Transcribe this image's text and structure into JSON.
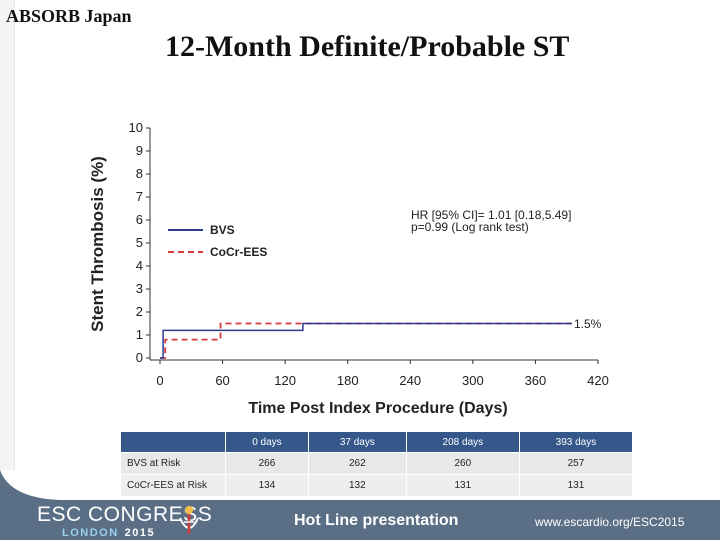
{
  "header": {
    "brand": "ABSORB Japan",
    "title": "12-Month Definite/Probable ST"
  },
  "chart_data": {
    "type": "line",
    "title": "12-Month Definite/Probable ST",
    "xlabel": "Time Post Index Procedure (Days)",
    "ylabel": "Stent Thrombosis (%)",
    "xlim": [
      0,
      420
    ],
    "ylim": [
      0,
      10
    ],
    "x_ticks": [
      "0",
      "60",
      "120",
      "180",
      "240",
      "300",
      "360",
      "420"
    ],
    "y_ticks": [
      "0",
      "1",
      "2",
      "3",
      "4",
      "5",
      "6",
      "7",
      "8",
      "9",
      "10"
    ],
    "series": [
      {
        "name": "BVS",
        "color": "#2b3b8f",
        "style": "solid",
        "x": [
          0,
          3,
          3,
          137,
          137,
          395
        ],
        "y": [
          0,
          0,
          1.2,
          1.2,
          1.5,
          1.5
        ]
      },
      {
        "name": "CoCr-EES",
        "color": "#d43a3a",
        "style": "dashed",
        "x": [
          0,
          5,
          5,
          58,
          58,
          395
        ],
        "y": [
          0,
          0,
          0.8,
          0.8,
          1.5,
          1.5
        ]
      }
    ],
    "end_label": "1.5%",
    "annotation_line1": "HR [95% CI]= 1.01 [0.18,5.49]",
    "annotation_line2": "p=0.99 (Log rank test)"
  },
  "risk_table": {
    "header_blank": "",
    "columns": [
      "0 days",
      "37 days",
      "208 days",
      "393 days"
    ],
    "rows": [
      {
        "label": "BVS at Risk",
        "values": [
          "266",
          "262",
          "260",
          "257"
        ]
      },
      {
        "label": "CoCr-EES at Risk",
        "values": [
          "134",
          "132",
          "131",
          "131"
        ]
      }
    ]
  },
  "footer": {
    "logo": "ESC CONGRESS",
    "city": "LONDON",
    "year": "2015",
    "hotline": "Hot Line presentation",
    "url": "www.escardio.org/ESC2015"
  },
  "colors": {
    "table_header": "#35578a",
    "footer_bg": "#5a6f85",
    "bvs": "#2b3b8f",
    "cocr": "#d43a3a"
  }
}
